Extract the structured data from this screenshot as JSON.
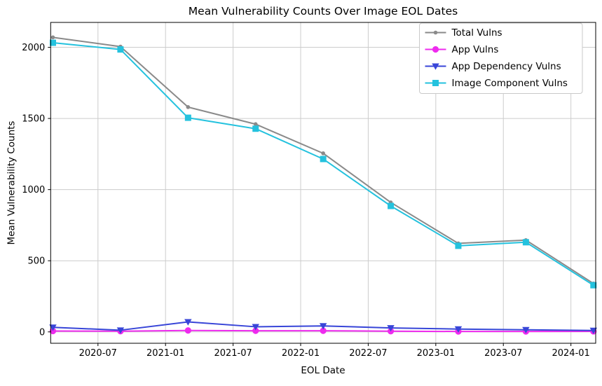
{
  "chart_data": {
    "type": "line",
    "title": "Mean Vulnerability Counts Over Image EOL Dates",
    "xlabel": "EOL Date",
    "ylabel": "Mean Vulnerability Counts",
    "x": [
      "2020-03",
      "2020-09",
      "2021-03",
      "2021-09",
      "2022-03",
      "2022-09",
      "2023-03",
      "2023-09",
      "2024-03"
    ],
    "x_months": [
      0,
      6,
      12,
      18,
      24,
      30,
      36,
      42,
      48
    ],
    "xlim_months": [
      -0.2,
      48.2
    ],
    "ylim": [
      -80,
      2175
    ],
    "x_tick_labels": [
      "2020-07",
      "2021-01",
      "2021-07",
      "2022-01",
      "2022-07",
      "2023-01",
      "2023-07",
      "2024-01"
    ],
    "x_tick_months": [
      4,
      10,
      16,
      22,
      28,
      34,
      40,
      46
    ],
    "y_tick_labels": [
      "0",
      "500",
      "1000",
      "1500",
      "2000"
    ],
    "y_tick_values": [
      0,
      500,
      1000,
      1500,
      2000
    ],
    "grid": true,
    "legend_position": "top-right",
    "series": [
      {
        "name": "Total Vulns",
        "color": "#8a8a8a",
        "marker": "dot",
        "values": [
          2070,
          2005,
          1580,
          1460,
          1255,
          910,
          622,
          645,
          340
        ]
      },
      {
        "name": "App Vulns",
        "color": "#ee2bee",
        "marker": "circle",
        "values": [
          6,
          5,
          10,
          8,
          8,
          5,
          3,
          3,
          4
        ]
      },
      {
        "name": "App Dependency Vulns",
        "color": "#3845d8",
        "marker": "triangle-down",
        "values": [
          32,
          12,
          70,
          36,
          42,
          28,
          20,
          15,
          10
        ]
      },
      {
        "name": "Image Component Vulns",
        "color": "#24c2de",
        "marker": "square",
        "values": [
          2032,
          1985,
          1505,
          1428,
          1215,
          885,
          605,
          630,
          328
        ]
      }
    ],
    "colors": {
      "background": "#ffffff",
      "grid": "#cccccc",
      "spine": "#000000",
      "text": "#000000",
      "legend_border": "#c9c9c9",
      "legend_background": "#ffffff"
    }
  }
}
